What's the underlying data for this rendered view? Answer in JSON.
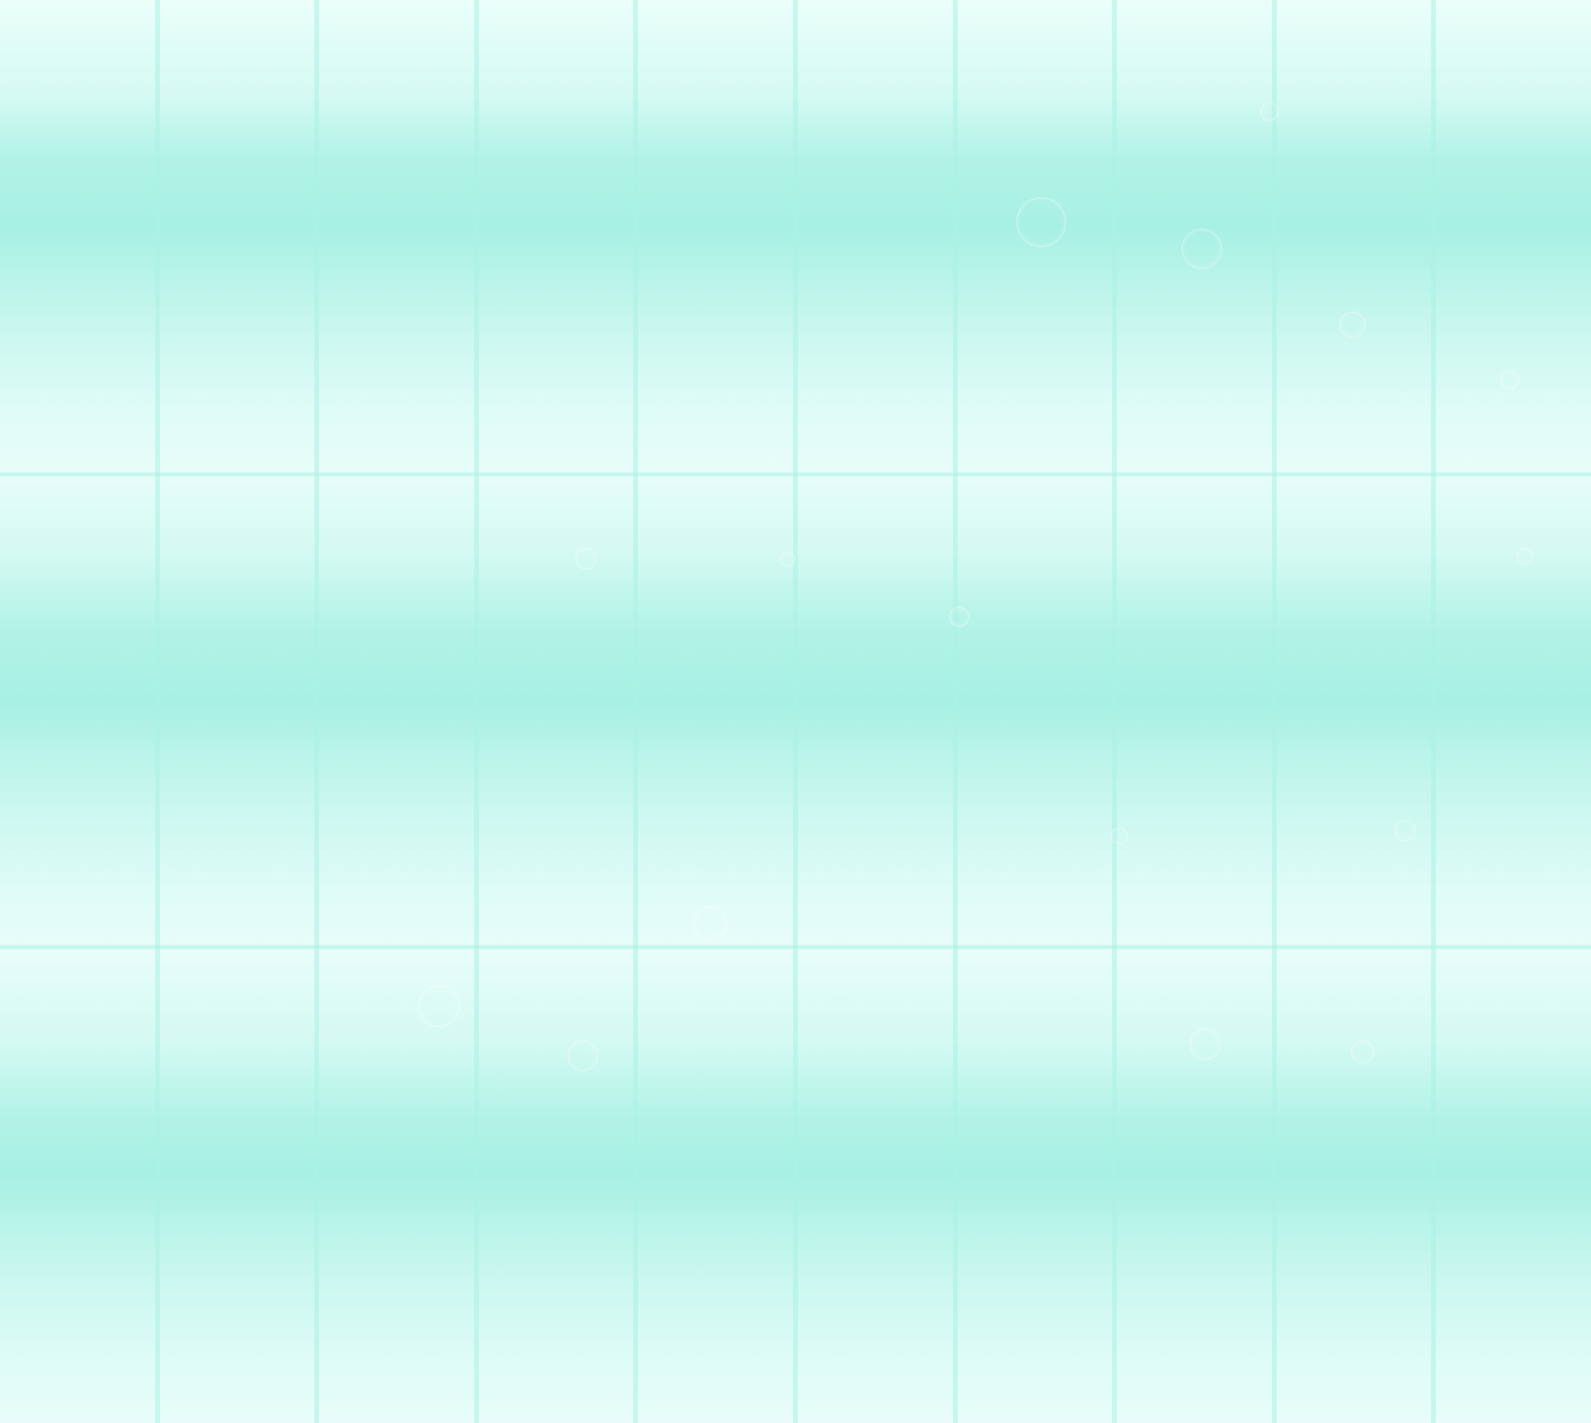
{
  "scene": {
    "description_colors": {
      "base": "#d9faf4",
      "band_dark": "#a8f0e4",
      "band_light": "#ecfffb",
      "grid_line": "#aaf2e4"
    },
    "grid": {
      "columns": 10,
      "rows": 3
    }
  }
}
